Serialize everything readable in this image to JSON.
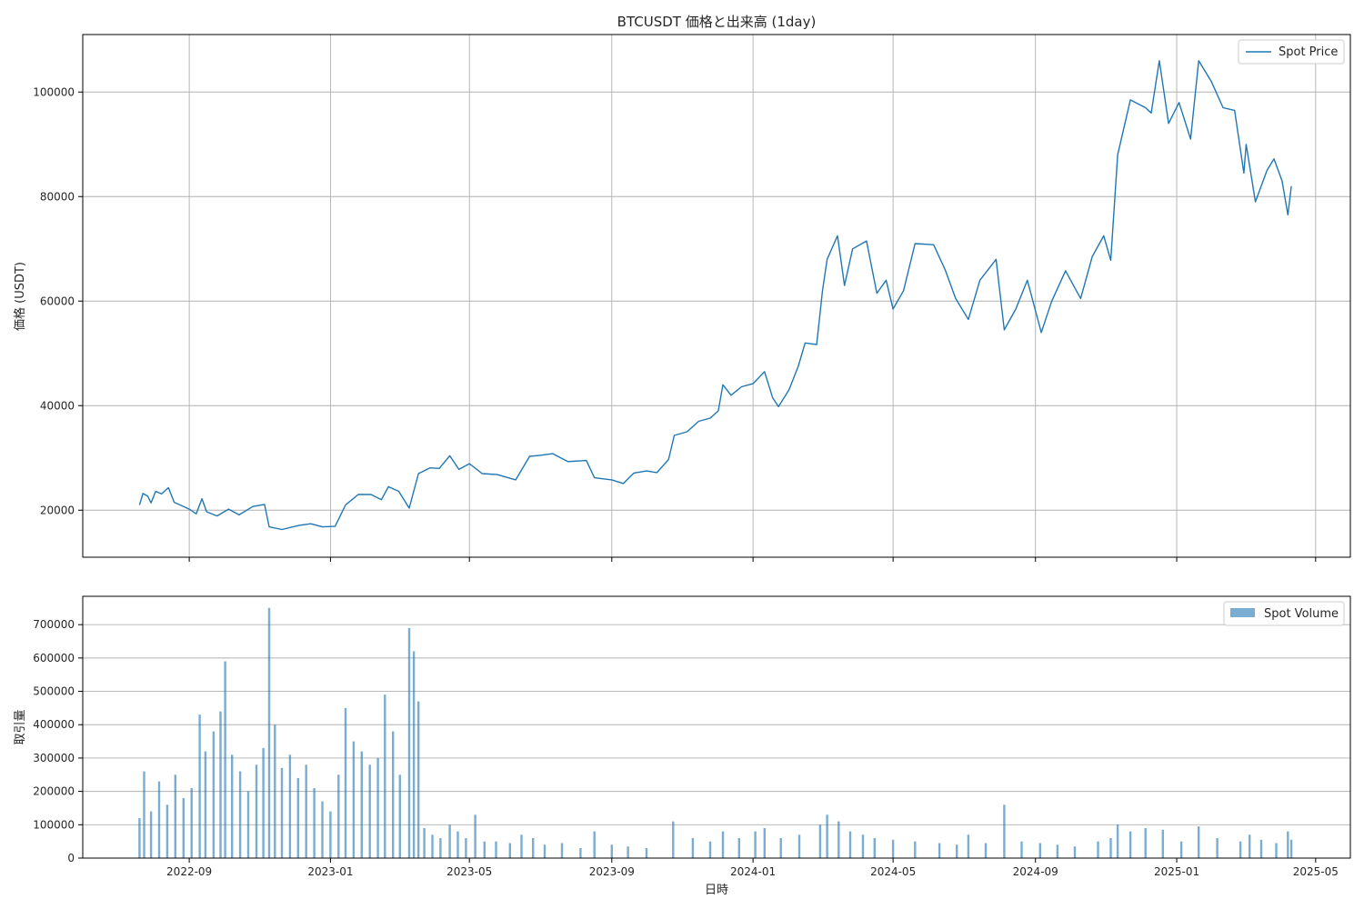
{
  "chart_data": [
    {
      "type": "line",
      "title": "BTCUSDT 価格と出来高 (1day)",
      "ylabel": "価格 (USDT)",
      "xlabel": "",
      "xlim": [
        "2022-06-01",
        "2025-05-31"
      ],
      "ylim": [
        11000,
        111000
      ],
      "x_ticks": [
        "2022-09",
        "2023-01",
        "2023-05",
        "2023-09",
        "2024-01",
        "2024-05",
        "2024-09",
        "2025-01",
        "2025-05"
      ],
      "y_ticks": [
        20000,
        40000,
        60000,
        80000,
        100000
      ],
      "grid": true,
      "legend": "top-right",
      "series": [
        {
          "name": "Spot Price",
          "color": "#1f77b4",
          "points": [
            [
              "2022-07-20",
              21000
            ],
            [
              "2022-07-23",
              23200
            ],
            [
              "2022-07-27",
              22700
            ],
            [
              "2022-07-30",
              21400
            ],
            [
              "2022-08-03",
              23600
            ],
            [
              "2022-08-08",
              23100
            ],
            [
              "2022-08-14",
              24300
            ],
            [
              "2022-08-19",
              21500
            ],
            [
              "2022-08-26",
              20800
            ],
            [
              "2022-09-01",
              20200
            ],
            [
              "2022-09-07",
              19300
            ],
            [
              "2022-09-12",
              22200
            ],
            [
              "2022-09-16",
              19700
            ],
            [
              "2022-09-25",
              18900
            ],
            [
              "2022-10-05",
              20200
            ],
            [
              "2022-10-14",
              19100
            ],
            [
              "2022-10-26",
              20700
            ],
            [
              "2022-11-05",
              21100
            ],
            [
              "2022-11-09",
              16800
            ],
            [
              "2022-11-20",
              16300
            ],
            [
              "2022-12-05",
              17100
            ],
            [
              "2022-12-15",
              17400
            ],
            [
              "2022-12-25",
              16800
            ],
            [
              "2023-01-05",
              16900
            ],
            [
              "2023-01-14",
              21000
            ],
            [
              "2023-01-25",
              23000
            ],
            [
              "2023-02-05",
              23000
            ],
            [
              "2023-02-14",
              22000
            ],
            [
              "2023-02-20",
              24500
            ],
            [
              "2023-03-01",
              23600
            ],
            [
              "2023-03-10",
              20400
            ],
            [
              "2023-03-18",
              27000
            ],
            [
              "2023-03-28",
              28100
            ],
            [
              "2023-04-05",
              28000
            ],
            [
              "2023-04-14",
              30400
            ],
            [
              "2023-04-22",
              27800
            ],
            [
              "2023-05-01",
              28900
            ],
            [
              "2023-05-12",
              27000
            ],
            [
              "2023-05-25",
              26800
            ],
            [
              "2023-06-10",
              25800
            ],
            [
              "2023-06-22",
              30300
            ],
            [
              "2023-07-01",
              30500
            ],
            [
              "2023-07-12",
              30800
            ],
            [
              "2023-07-25",
              29300
            ],
            [
              "2023-08-10",
              29500
            ],
            [
              "2023-08-17",
              26200
            ],
            [
              "2023-09-01",
              25800
            ],
            [
              "2023-09-11",
              25100
            ],
            [
              "2023-09-20",
              27100
            ],
            [
              "2023-10-01",
              27500
            ],
            [
              "2023-10-10",
              27200
            ],
            [
              "2023-10-20",
              29700
            ],
            [
              "2023-10-25",
              34300
            ],
            [
              "2023-11-05",
              35000
            ],
            [
              "2023-11-15",
              37000
            ],
            [
              "2023-11-25",
              37600
            ],
            [
              "2023-12-02",
              39000
            ],
            [
              "2023-12-06",
              44000
            ],
            [
              "2023-12-13",
              42000
            ],
            [
              "2023-12-22",
              43600
            ],
            [
              "2024-01-01",
              44200
            ],
            [
              "2024-01-11",
              46500
            ],
            [
              "2024-01-18",
              41500
            ],
            [
              "2024-01-23",
              39800
            ],
            [
              "2024-02-01",
              43000
            ],
            [
              "2024-02-09",
              47500
            ],
            [
              "2024-02-15",
              52000
            ],
            [
              "2024-02-25",
              51700
            ],
            [
              "2024-03-01",
              62000
            ],
            [
              "2024-03-05",
              68000
            ],
            [
              "2024-03-14",
              72500
            ],
            [
              "2024-03-20",
              63000
            ],
            [
              "2024-03-27",
              70000
            ],
            [
              "2024-04-08",
              71500
            ],
            [
              "2024-04-17",
              61500
            ],
            [
              "2024-04-25",
              64000
            ],
            [
              "2024-05-01",
              58500
            ],
            [
              "2024-05-10",
              62000
            ],
            [
              "2024-05-20",
              71000
            ],
            [
              "2024-06-05",
              70800
            ],
            [
              "2024-06-15",
              66000
            ],
            [
              "2024-06-24",
              60500
            ],
            [
              "2024-07-05",
              56500
            ],
            [
              "2024-07-15",
              64000
            ],
            [
              "2024-07-29",
              68000
            ],
            [
              "2024-08-05",
              54500
            ],
            [
              "2024-08-15",
              58500
            ],
            [
              "2024-08-25",
              64000
            ],
            [
              "2024-09-06",
              54000
            ],
            [
              "2024-09-15",
              60000
            ],
            [
              "2024-09-27",
              65800
            ],
            [
              "2024-10-10",
              60500
            ],
            [
              "2024-10-20",
              68500
            ],
            [
              "2024-10-30",
              72500
            ],
            [
              "2024-11-05",
              67800
            ],
            [
              "2024-11-11",
              88000
            ],
            [
              "2024-11-22",
              98500
            ],
            [
              "2024-12-05",
              97000
            ],
            [
              "2024-12-10",
              96000
            ],
            [
              "2024-12-17",
              106000
            ],
            [
              "2024-12-25",
              94000
            ],
            [
              "2025-01-03",
              98000
            ],
            [
              "2025-01-13",
              91000
            ],
            [
              "2025-01-20",
              106000
            ],
            [
              "2025-01-31",
              102000
            ],
            [
              "2025-02-10",
              97000
            ],
            [
              "2025-02-20",
              96500
            ],
            [
              "2025-02-28",
              84500
            ],
            [
              "2025-03-02",
              90000
            ],
            [
              "2025-03-10",
              79000
            ],
            [
              "2025-03-20",
              85000
            ],
            [
              "2025-03-26",
              87200
            ],
            [
              "2025-04-02",
              83000
            ],
            [
              "2025-04-07",
              76500
            ],
            [
              "2025-04-10",
              82000
            ]
          ]
        }
      ]
    },
    {
      "type": "bar",
      "title": "",
      "xlabel": "日時",
      "ylabel": "取引量",
      "xlim": [
        "2022-06-01",
        "2025-05-31"
      ],
      "ylim": [
        0,
        785000
      ],
      "x_ticks": [
        "2022-09",
        "2023-01",
        "2023-05",
        "2023-09",
        "2024-01",
        "2024-05",
        "2024-09",
        "2025-01",
        "2025-05"
      ],
      "y_ticks": [
        0,
        100000,
        200000,
        300000,
        400000,
        500000,
        600000,
        700000
      ],
      "grid": true,
      "legend": "top-right",
      "series": [
        {
          "name": "Spot Volume",
          "color": "#1f77b4",
          "points": [
            [
              "2022-07-20",
              120000
            ],
            [
              "2022-07-24",
              260000
            ],
            [
              "2022-07-30",
              140000
            ],
            [
              "2022-08-06",
              230000
            ],
            [
              "2022-08-13",
              160000
            ],
            [
              "2022-08-20",
              250000
            ],
            [
              "2022-08-27",
              180000
            ],
            [
              "2022-09-03",
              210000
            ],
            [
              "2022-09-10",
              430000
            ],
            [
              "2022-09-15",
              320000
            ],
            [
              "2022-09-22",
              380000
            ],
            [
              "2022-09-28",
              440000
            ],
            [
              "2022-10-02",
              590000
            ],
            [
              "2022-10-08",
              310000
            ],
            [
              "2022-10-15",
              260000
            ],
            [
              "2022-10-22",
              200000
            ],
            [
              "2022-10-29",
              280000
            ],
            [
              "2022-11-04",
              330000
            ],
            [
              "2022-11-09",
              750000
            ],
            [
              "2022-11-14",
              400000
            ],
            [
              "2022-11-20",
              270000
            ],
            [
              "2022-11-27",
              310000
            ],
            [
              "2022-12-04",
              240000
            ],
            [
              "2022-12-11",
              280000
            ],
            [
              "2022-12-18",
              210000
            ],
            [
              "2022-12-25",
              170000
            ],
            [
              "2023-01-01",
              140000
            ],
            [
              "2023-01-08",
              250000
            ],
            [
              "2023-01-14",
              450000
            ],
            [
              "2023-01-21",
              350000
            ],
            [
              "2023-01-28",
              320000
            ],
            [
              "2023-02-04",
              280000
            ],
            [
              "2023-02-11",
              300000
            ],
            [
              "2023-02-17",
              490000
            ],
            [
              "2023-02-24",
              380000
            ],
            [
              "2023-03-02",
              250000
            ],
            [
              "2023-03-10",
              690000
            ],
            [
              "2023-03-14",
              620000
            ],
            [
              "2023-03-18",
              470000
            ],
            [
              "2023-03-23",
              90000
            ],
            [
              "2023-03-30",
              70000
            ],
            [
              "2023-04-06",
              60000
            ],
            [
              "2023-04-14",
              100000
            ],
            [
              "2023-04-21",
              80000
            ],
            [
              "2023-04-28",
              60000
            ],
            [
              "2023-05-06",
              130000
            ],
            [
              "2023-05-14",
              50000
            ],
            [
              "2023-05-24",
              50000
            ],
            [
              "2023-06-05",
              45000
            ],
            [
              "2023-06-15",
              70000
            ],
            [
              "2023-06-25",
              60000
            ],
            [
              "2023-07-05",
              40000
            ],
            [
              "2023-07-20",
              45000
            ],
            [
              "2023-08-05",
              30000
            ],
            [
              "2023-08-17",
              80000
            ],
            [
              "2023-09-01",
              40000
            ],
            [
              "2023-09-15",
              35000
            ],
            [
              "2023-10-01",
              30000
            ],
            [
              "2023-10-24",
              110000
            ],
            [
              "2023-11-10",
              60000
            ],
            [
              "2023-11-25",
              50000
            ],
            [
              "2023-12-06",
              80000
            ],
            [
              "2023-12-20",
              60000
            ],
            [
              "2024-01-03",
              80000
            ],
            [
              "2024-01-11",
              90000
            ],
            [
              "2024-01-25",
              60000
            ],
            [
              "2024-02-10",
              70000
            ],
            [
              "2024-02-28",
              100000
            ],
            [
              "2024-03-05",
              130000
            ],
            [
              "2024-03-15",
              110000
            ],
            [
              "2024-03-25",
              80000
            ],
            [
              "2024-04-05",
              70000
            ],
            [
              "2024-04-15",
              60000
            ],
            [
              "2024-05-01",
              55000
            ],
            [
              "2024-05-20",
              50000
            ],
            [
              "2024-06-10",
              45000
            ],
            [
              "2024-06-25",
              40000
            ],
            [
              "2024-07-05",
              70000
            ],
            [
              "2024-07-20",
              45000
            ],
            [
              "2024-08-05",
              160000
            ],
            [
              "2024-08-20",
              50000
            ],
            [
              "2024-09-05",
              45000
            ],
            [
              "2024-09-20",
              40000
            ],
            [
              "2024-10-05",
              35000
            ],
            [
              "2024-10-25",
              50000
            ],
            [
              "2024-11-05",
              60000
            ],
            [
              "2024-11-11",
              100000
            ],
            [
              "2024-11-22",
              80000
            ],
            [
              "2024-12-05",
              90000
            ],
            [
              "2024-12-20",
              85000
            ],
            [
              "2025-01-05",
              50000
            ],
            [
              "2025-01-20",
              95000
            ],
            [
              "2025-02-05",
              60000
            ],
            [
              "2025-02-25",
              50000
            ],
            [
              "2025-03-05",
              70000
            ],
            [
              "2025-03-15",
              55000
            ],
            [
              "2025-03-28",
              45000
            ],
            [
              "2025-04-07",
              80000
            ],
            [
              "2025-04-10",
              55000
            ]
          ]
        }
      ]
    }
  ]
}
